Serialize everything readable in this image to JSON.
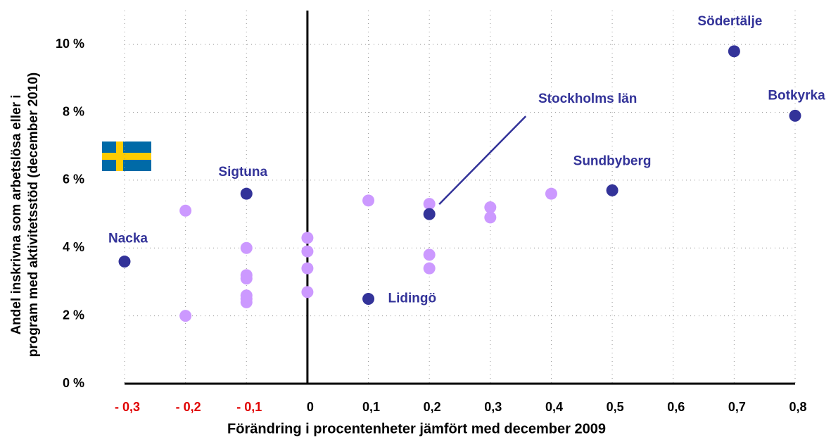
{
  "chart_data": {
    "type": "scatter",
    "xlabel": "Förändring i procentenheter jämfört med december 2009",
    "ylabel": [
      "Andel inskrivna som arbetslösa eller i",
      "program med aktivitetsstöd (december 2010)"
    ],
    "xlim": [
      -0.3,
      0.8
    ],
    "ylim": [
      0,
      11
    ],
    "xticks": [
      {
        "value": -0.3,
        "label": "- 0,3"
      },
      {
        "value": -0.2,
        "label": "- 0,2"
      },
      {
        "value": -0.1,
        "label": "- 0,1"
      },
      0,
      {
        "value": 0.1,
        "label": "0,1"
      },
      {
        "value": 0.2,
        "label": "0,2"
      },
      {
        "value": 0.3,
        "label": "0,3"
      },
      {
        "value": 0.4,
        "label": "0,4"
      },
      {
        "value": 0.5,
        "label": "0,5"
      },
      {
        "value": 0.6,
        "label": "0,6"
      },
      {
        "value": 0.7,
        "label": "0,7"
      },
      {
        "value": 0.8,
        "label": "0,8"
      }
    ],
    "yticks": [
      {
        "value": 0,
        "label": "0 %"
      },
      {
        "value": 2,
        "label": "2 %"
      },
      {
        "value": 4,
        "label": "4 %"
      },
      {
        "value": 6,
        "label": "6 %"
      },
      {
        "value": 8,
        "label": "8 %"
      },
      {
        "value": 10,
        "label": "10 %"
      }
    ],
    "grid": true,
    "negative_tick_color": "#e00000",
    "series": [
      {
        "color": "#cc99ff",
        "x": [
          -0.2,
          -0.2,
          -0.1,
          -0.1,
          -0.1,
          -0.1,
          -0.1,
          -0.1,
          0,
          0,
          0,
          0,
          0.1,
          0.2,
          0.2,
          0.2,
          0.3,
          0.3,
          0.4
        ],
        "values": [
          5.1,
          2.0,
          4.0,
          3.2,
          3.1,
          2.6,
          2.5,
          2.4,
          4.3,
          3.9,
          3.4,
          2.7,
          5.4,
          5.3,
          3.8,
          3.4,
          5.2,
          4.9,
          5.6
        ]
      },
      {
        "color": "#333399",
        "x": [
          -0.3,
          -0.1,
          0.1,
          0.2,
          0.5,
          0.7,
          0.8
        ],
        "values": [
          3.6,
          5.6,
          2.5,
          5.0,
          5.7,
          9.8,
          7.9
        ],
        "labels": [
          "Nacka",
          "Sigtuna",
          "Lidingö",
          "Stockholms län",
          "Sundbyberg",
          "Södertälje",
          "Botkyrka"
        ]
      }
    ]
  }
}
